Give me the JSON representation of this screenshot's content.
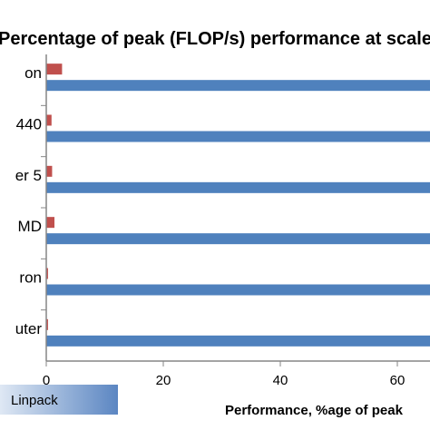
{
  "chart_data": {
    "type": "bar",
    "orientation": "horizontal",
    "title": "Percentage of peak (FLOP/s) performance at scale",
    "categories": [
      "on",
      "440",
      "er 5",
      "MD",
      "ron",
      "uter"
    ],
    "series": [
      {
        "name": "Linpack",
        "color": "#4f81bd",
        "values": [
          75,
          75,
          75,
          75,
          75,
          75
        ]
      },
      {
        "name": "",
        "color": "#c0504d",
        "values": [
          2.7,
          0.9,
          1.0,
          1.4,
          0.3,
          0.3
        ]
      }
    ],
    "xlabel": "Performance, %age of peak",
    "xticks": [
      0,
      20,
      40,
      60
    ],
    "xlim": [
      0,
      65
    ],
    "grid": false,
    "legend": {
      "position": "bottom-left",
      "entries": [
        "Linpack"
      ]
    }
  }
}
